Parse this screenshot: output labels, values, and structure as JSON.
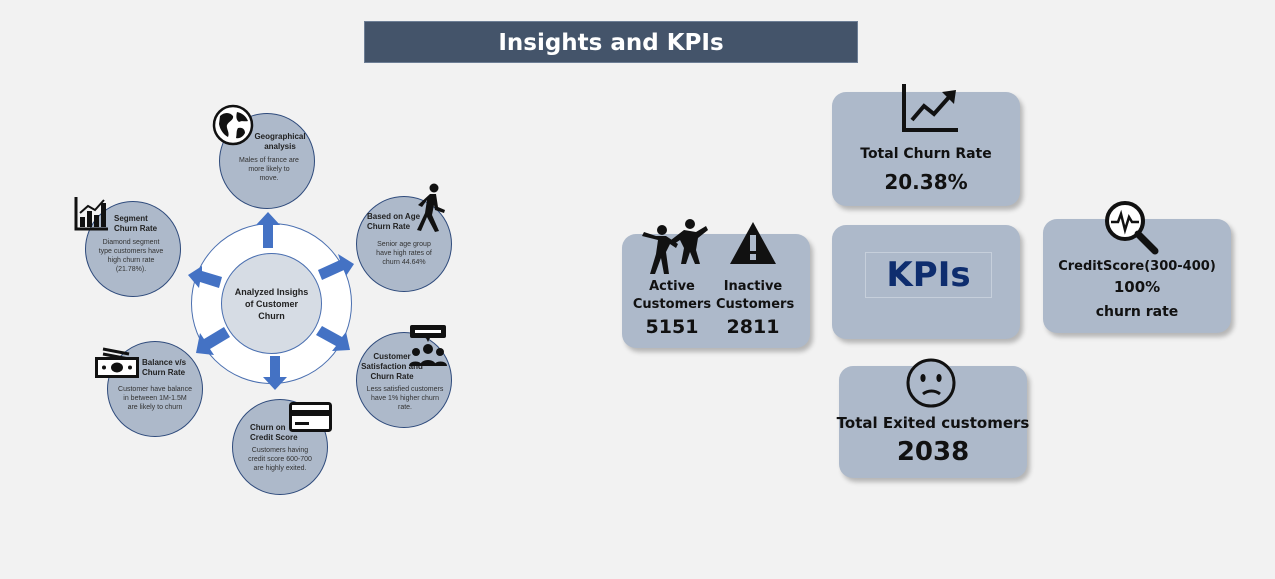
{
  "header": {
    "title": "Insights and KPIs"
  },
  "diagram": {
    "center_label": "Analyzed Insighs of Customer Churn",
    "geo": {
      "title": "Geographical analysis",
      "desc": "Males of france are more likely to move.",
      "icon": "globe-icon"
    },
    "age": {
      "title": "Based on Age Churn Rate",
      "desc": "Senior age group have high rates of churn 44.64%",
      "icon": "walking-person-icon"
    },
    "satisfaction": {
      "title": "Customer Satisfaction and Churn Rate",
      "desc": "Less satisfied customers have 1% higher churn rate.",
      "icon": "customer-feedback-icon"
    },
    "credit": {
      "title": "Churn on Credit Score",
      "desc": "Customers having credit score 600-700 are highly exited.",
      "icon": "credit-card-icon"
    },
    "balance": {
      "title": "Balance v/s Churn Rate",
      "desc": "Customer have balance in between 1M-1.5M are likely to churn",
      "icon": "cash-icon"
    },
    "segment": {
      "title": "Segment Churn Rate",
      "desc": "Diamond segment type customers have high churn rate (21.78%).",
      "icon": "bar-chart-icon"
    }
  },
  "kpis": {
    "center_label": "KPIs",
    "total_churn": {
      "label": "Total Churn Rate",
      "value": "20.38%",
      "icon": "trend-up-chart-icon"
    },
    "active": {
      "label": "Active Customers",
      "value": "5151",
      "icon": "dancing-people-icon"
    },
    "inactive": {
      "label": "Inactive Customers",
      "value": "2811",
      "icon": "warning-icon"
    },
    "credit": {
      "label": "CreditScore(300-400)",
      "value": "100%",
      "sub": "churn rate",
      "icon": "magnifier-pulse-icon"
    },
    "exited": {
      "label": "Total Exited customers",
      "value": "2038",
      "icon": "sad-face-icon"
    }
  },
  "colors": {
    "title_bar": "#44546a",
    "satellite": "#adb9ca",
    "center": "#d6dce4",
    "arrow": "#4472c4",
    "kpi_text": "#0e2d6e"
  }
}
